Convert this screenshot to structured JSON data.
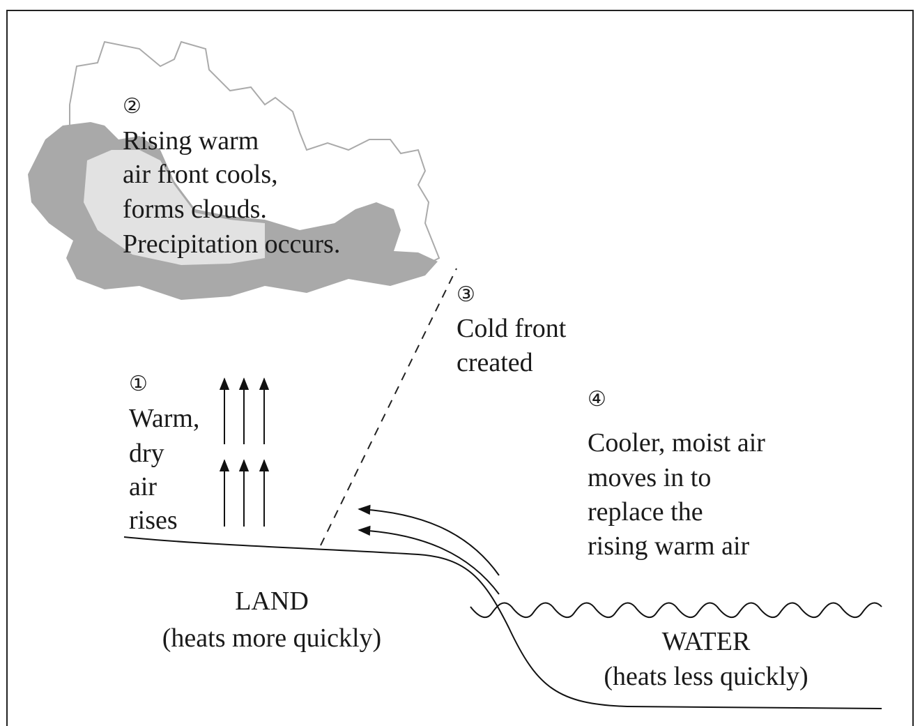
{
  "steps": [
    {
      "number": "①",
      "lines": [
        "Warm,",
        "dry",
        "air",
        "rises"
      ]
    },
    {
      "number": "②",
      "lines": [
        "Rising warm",
        "air front cools,",
        "forms clouds.",
        "Precipitation occurs."
      ]
    },
    {
      "number": "③",
      "lines": [
        "Cold front",
        "created"
      ]
    },
    {
      "number": "④",
      "lines": [
        "Cooler, moist air",
        "moves in to",
        "replace the",
        "rising warm air"
      ]
    }
  ],
  "regions": [
    {
      "name": "LAND",
      "note": "(heats more quickly)"
    },
    {
      "name": "WATER",
      "note": "(heats less quickly)"
    }
  ]
}
